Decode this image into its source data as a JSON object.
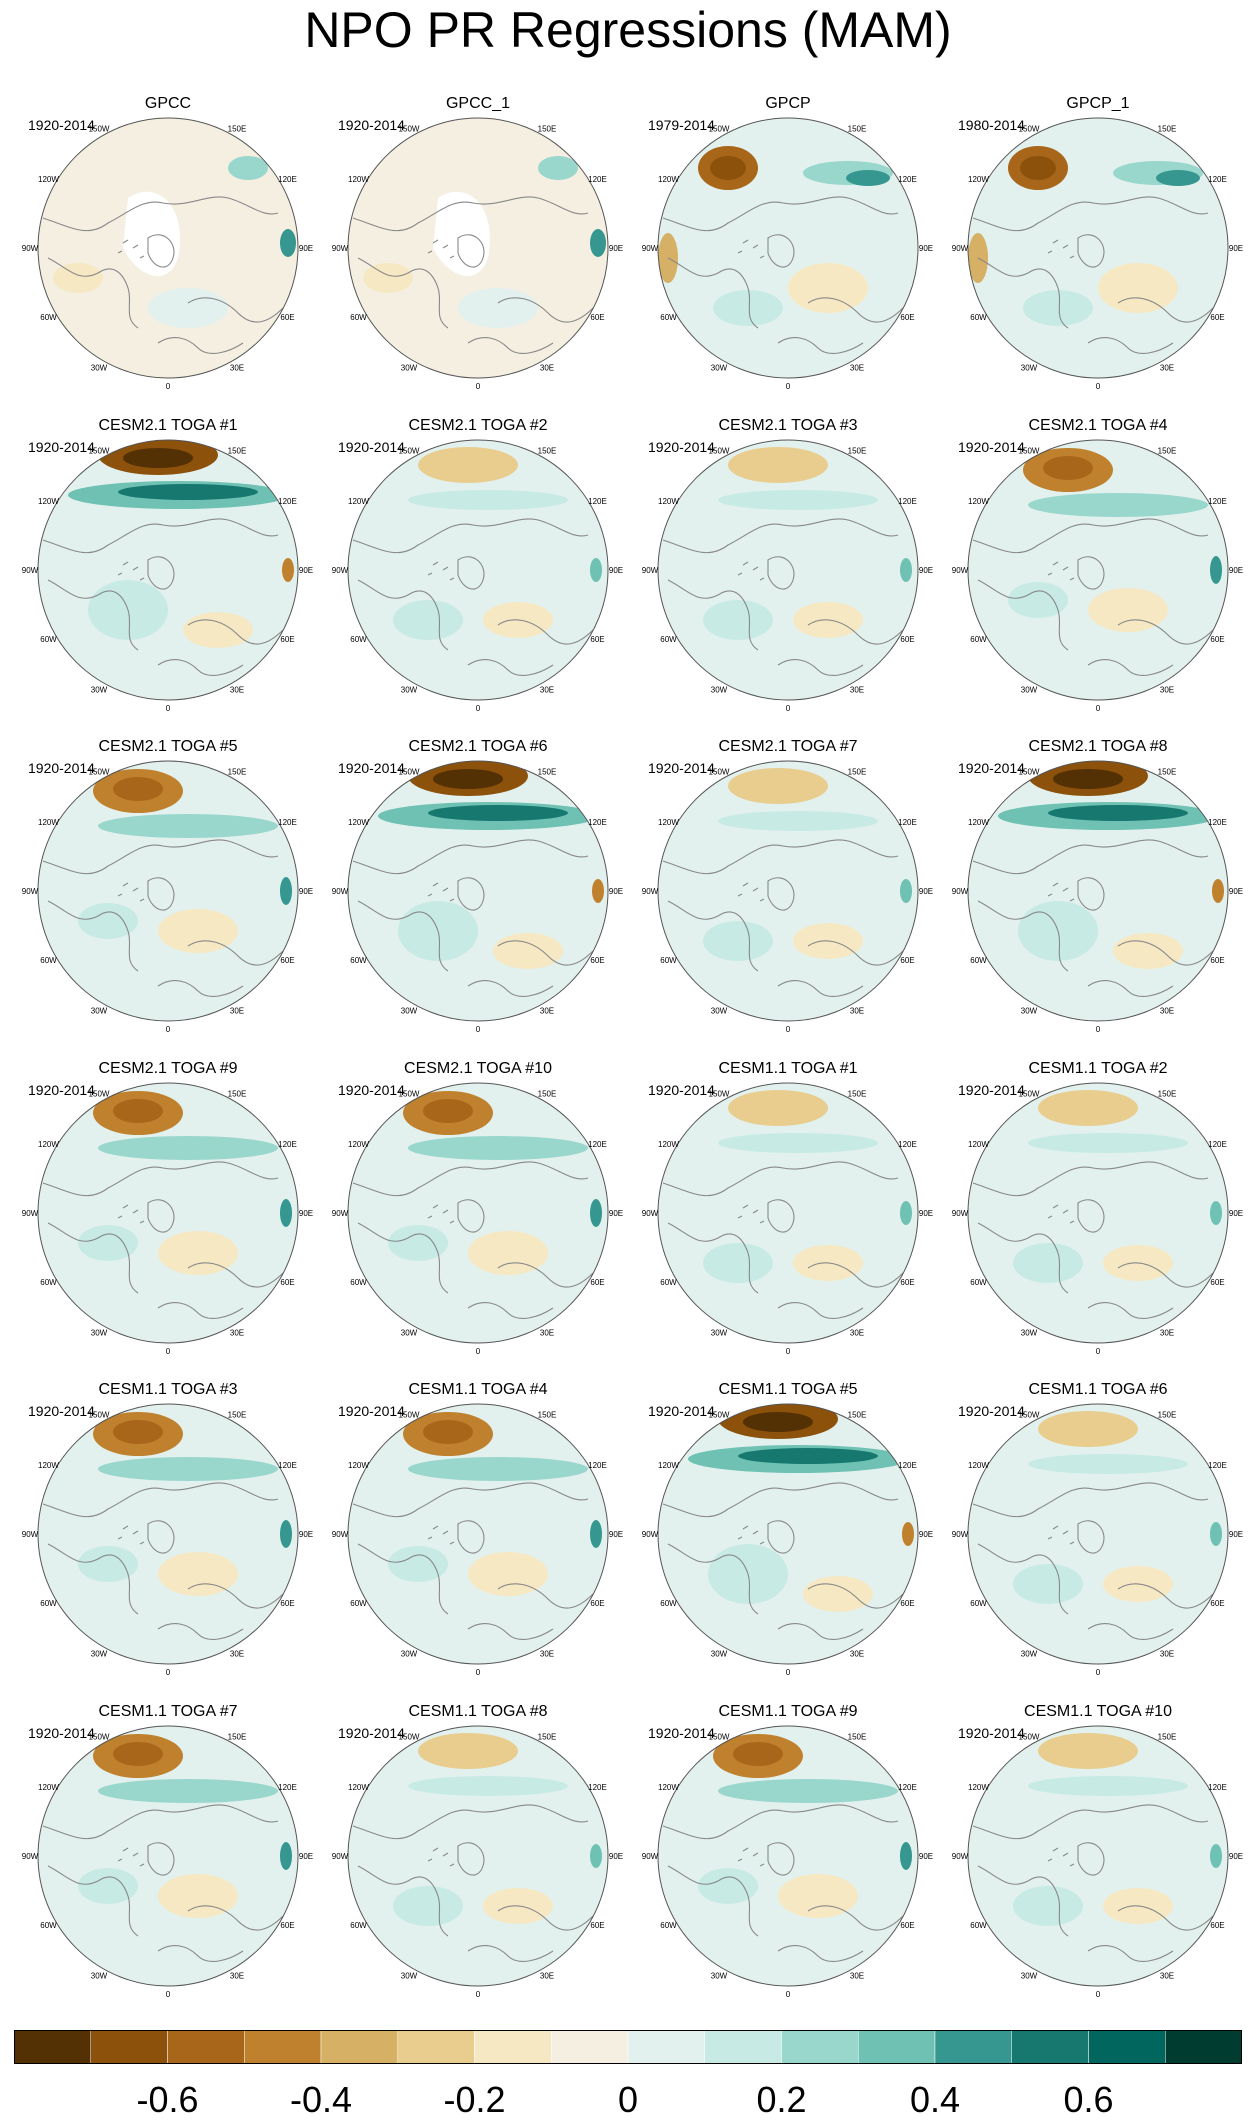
{
  "title": "NPO PR Regressions (MAM)",
  "colors": {
    "scale": [
      "#543005",
      "#8c510a",
      "#a8661a",
      "#bf812d",
      "#d6b064",
      "#e8cd8f",
      "#f6e8c3",
      "#f5efe2",
      "#e2f1ee",
      "#c7eae5",
      "#99d6cc",
      "#6ec1b3",
      "#35978f",
      "#16786f",
      "#01665e",
      "#003c30"
    ],
    "coast": "#888888",
    "land_mask": "#ffffff"
  },
  "colorbar": {
    "labels": [
      "-0.6",
      "-0.4",
      "-0.2",
      "0",
      "0.2",
      "0.4",
      "0.6"
    ]
  },
  "map_labels": {
    "top": "180",
    "top_left": "150W",
    "top_right": "150E",
    "upper_left": "120W",
    "upper_right": "120E",
    "left": "90W",
    "right": "90E",
    "lower_left": "60W",
    "lower_right": "60E",
    "bottom_left": "30W",
    "bottom_right": "30E",
    "bottom": "0"
  },
  "panels": [
    {
      "title": "GPCC",
      "period": "1920-2014",
      "pattern": "gpcc"
    },
    {
      "title": "GPCC_1",
      "period": "1920-2014",
      "pattern": "gpcc"
    },
    {
      "title": "GPCP",
      "period": "1979-2014",
      "pattern": "gpcp"
    },
    {
      "title": "GPCP_1",
      "period": "1980-2014",
      "pattern": "gpcp"
    },
    {
      "title": "CESM2.1 TOGA #1",
      "period": "1920-2014",
      "pattern": "strong"
    },
    {
      "title": "CESM2.1 TOGA #2",
      "period": "1920-2014",
      "pattern": "weak"
    },
    {
      "title": "CESM2.1 TOGA #3",
      "period": "1920-2014",
      "pattern": "weak"
    },
    {
      "title": "CESM2.1 TOGA #4",
      "period": "1920-2014",
      "pattern": "moderate"
    },
    {
      "title": "CESM2.1 TOGA #5",
      "period": "1920-2014",
      "pattern": "moderate"
    },
    {
      "title": "CESM2.1 TOGA #6",
      "period": "1920-2014",
      "pattern": "strong"
    },
    {
      "title": "CESM2.1 TOGA #7",
      "period": "1920-2014",
      "pattern": "weak"
    },
    {
      "title": "CESM2.1 TOGA #8",
      "period": "1920-2014",
      "pattern": "strong"
    },
    {
      "title": "CESM2.1 TOGA #9",
      "period": "1920-2014",
      "pattern": "moderate"
    },
    {
      "title": "CESM2.1 TOGA #10",
      "period": "1920-2014",
      "pattern": "moderate"
    },
    {
      "title": "CESM1.1 TOGA #1",
      "period": "1920-2014",
      "pattern": "weak"
    },
    {
      "title": "CESM1.1 TOGA #2",
      "period": "1920-2014",
      "pattern": "weak"
    },
    {
      "title": "CESM1.1 TOGA #3",
      "period": "1920-2014",
      "pattern": "moderate"
    },
    {
      "title": "CESM1.1 TOGA #4",
      "period": "1920-2014",
      "pattern": "moderate"
    },
    {
      "title": "CESM1.1 TOGA #5",
      "period": "1920-2014",
      "pattern": "strong"
    },
    {
      "title": "CESM1.1 TOGA #6",
      "period": "1920-2014",
      "pattern": "weak"
    },
    {
      "title": "CESM1.1 TOGA #7",
      "period": "1920-2014",
      "pattern": "moderate"
    },
    {
      "title": "CESM1.1 TOGA #8",
      "period": "1920-2014",
      "pattern": "weak"
    },
    {
      "title": "CESM1.1 TOGA #9",
      "period": "1920-2014",
      "pattern": "moderate"
    },
    {
      "title": "CESM1.1 TOGA #10",
      "period": "1920-2014",
      "pattern": "weak"
    }
  ]
}
